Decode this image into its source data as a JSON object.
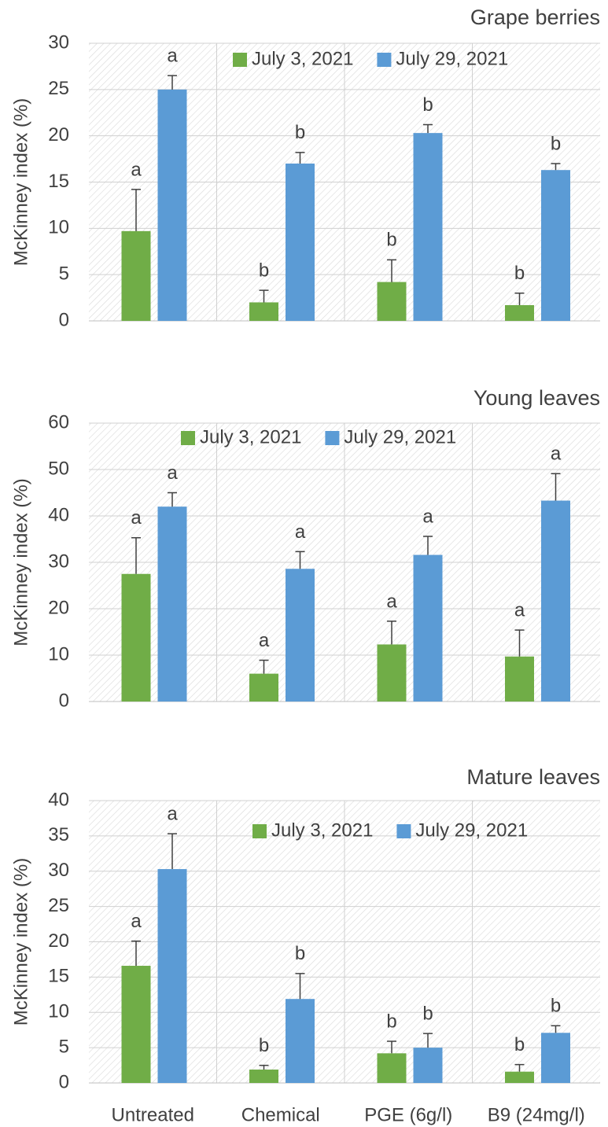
{
  "chart_data": [
    {
      "type": "bar",
      "title": "Grape berries",
      "ylabel": "McKinney index (%)",
      "categories": [
        null,
        null,
        null,
        null
      ],
      "ylim": [
        0,
        30
      ],
      "yticks": [
        0,
        5,
        10,
        15,
        20,
        25,
        30
      ],
      "grid": true,
      "series": [
        {
          "name": "July 3, 2021",
          "color": "#70ad47",
          "values": [
            9.7,
            2.0,
            4.2,
            1.7
          ],
          "errors": [
            4.5,
            1.3,
            2.4,
            1.3
          ],
          "labels": [
            "a",
            "b",
            "b",
            "b"
          ]
        },
        {
          "name": "July 29, 2021",
          "color": "#5b9bd5",
          "values": [
            25.0,
            17.0,
            20.3,
            16.3
          ],
          "errors": [
            1.5,
            1.2,
            0.9,
            0.7
          ],
          "labels": [
            "a",
            "b",
            "b",
            "b"
          ]
        }
      ]
    },
    {
      "type": "bar",
      "title": "Young leaves",
      "ylabel": "McKinney index (%)",
      "categories": [
        null,
        null,
        null,
        null
      ],
      "ylim": [
        0,
        60
      ],
      "yticks": [
        0,
        10,
        20,
        30,
        40,
        50,
        60
      ],
      "grid": true,
      "series": [
        {
          "name": "July 3, 2021",
          "color": "#70ad47",
          "values": [
            27.5,
            6.0,
            12.3,
            9.7
          ],
          "errors": [
            7.8,
            2.9,
            5.0,
            5.7
          ],
          "labels": [
            "a",
            "a",
            "a",
            "a"
          ]
        },
        {
          "name": "July 29, 2021",
          "color": "#5b9bd5",
          "values": [
            42.0,
            28.6,
            31.6,
            43.3
          ],
          "errors": [
            3.0,
            3.7,
            4.0,
            5.8
          ],
          "labels": [
            "a",
            "a",
            "a",
            "a"
          ]
        }
      ]
    },
    {
      "type": "bar",
      "title": "Mature leaves",
      "ylabel": "McKinney index (%)",
      "categories": [
        "Untreated",
        "Chemical",
        "PGE (6g/l)",
        "B9 (24mg/l)"
      ],
      "ylim": [
        0,
        40
      ],
      "yticks": [
        0,
        5,
        10,
        15,
        20,
        25,
        30,
        35,
        40
      ],
      "grid": true,
      "series": [
        {
          "name": "July 3, 2021",
          "color": "#70ad47",
          "values": [
            16.6,
            1.9,
            4.2,
            1.6
          ],
          "errors": [
            3.5,
            0.6,
            1.7,
            1.0
          ],
          "labels": [
            "a",
            "b",
            "b",
            "b"
          ]
        },
        {
          "name": "July 29, 2021",
          "color": "#5b9bd5",
          "values": [
            30.3,
            11.9,
            5.0,
            7.1
          ],
          "errors": [
            5.0,
            3.6,
            2.0,
            1.0
          ],
          "labels": [
            "a",
            "b",
            "b",
            "b"
          ]
        }
      ]
    }
  ]
}
